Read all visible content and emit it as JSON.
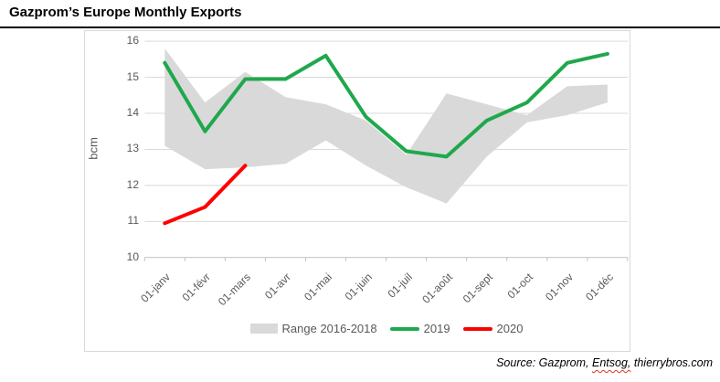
{
  "title": "Gazprom’s Europe Monthly Exports",
  "source": {
    "prefix": "Source: Gazprom, ",
    "spellchecked_word": "Entsog,",
    "suffix": " thierrybros.com"
  },
  "colors": {
    "band": "#d9d9d9",
    "green_2019": "#1fa84c",
    "red_2020": "#fe0000",
    "gridline": "#d9d9d9",
    "axis_line": "#bfbfbf",
    "axis_text": "#595959"
  },
  "chart_data": {
    "type": "line",
    "title": "Gazprom’s Europe Monthly Exports",
    "xlabel": "",
    "ylabel": "bcm",
    "ylim": [
      10,
      16
    ],
    "yticks": [
      10,
      11,
      12,
      13,
      14,
      15,
      16
    ],
    "grid": true,
    "legend_position": "bottom",
    "categories": [
      "01-janv",
      "01-févr",
      "01-mars",
      "01-avr",
      "01-mai",
      "01-juin",
      "01-juil",
      "01-août",
      "01-sept",
      "01-oct",
      "01-nov",
      "01-déc"
    ],
    "series": [
      {
        "name": "Range 2016-2018",
        "type": "band",
        "color": "#d9d9d9",
        "upper": [
          15.8,
          14.3,
          15.15,
          14.45,
          14.25,
          13.8,
          12.85,
          14.55,
          14.25,
          13.95,
          14.75,
          14.8
        ],
        "lower": [
          13.1,
          12.45,
          12.5,
          12.6,
          13.25,
          12.55,
          11.95,
          11.5,
          12.8,
          13.75,
          13.95,
          14.3
        ]
      },
      {
        "name": "2019",
        "type": "line",
        "color": "#1fa84c",
        "values": [
          15.4,
          13.5,
          14.95,
          14.95,
          15.6,
          13.9,
          12.95,
          12.8,
          13.8,
          14.3,
          15.4,
          15.65
        ]
      },
      {
        "name": "2020",
        "type": "line",
        "color": "#fe0000",
        "values": [
          10.95,
          11.4,
          12.55
        ]
      }
    ]
  }
}
